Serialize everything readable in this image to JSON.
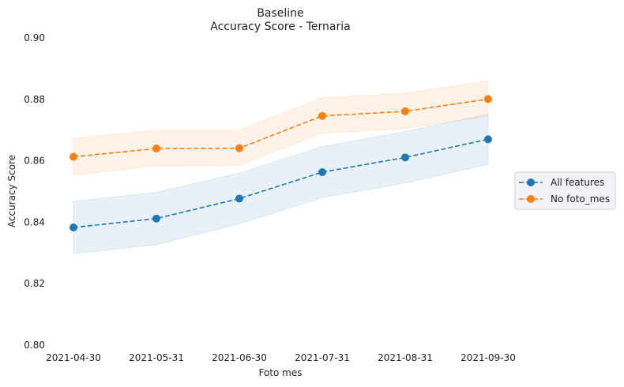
{
  "chart_data": {
    "type": "line",
    "title": "Baseline",
    "subtitle": "Accuracy Score - Ternaria",
    "xlabel": "Foto mes",
    "ylabel": "Accuracy Score",
    "categories": [
      "2021-04-30",
      "2021-05-31",
      "2021-06-30",
      "2021-07-31",
      "2021-08-31",
      "2021-09-30"
    ],
    "ylim": [
      0.8,
      0.9
    ],
    "yticks": [
      "0.80",
      "0.82",
      "0.84",
      "0.86",
      "0.88",
      "0.90"
    ],
    "grid": false,
    "legend_position": "right",
    "series": [
      {
        "name": "All features",
        "color": "#1f77b4",
        "values": [
          0.8383,
          0.8412,
          0.8477,
          0.8563,
          0.8611,
          0.867
        ],
        "lower": [
          0.8298,
          0.8327,
          0.8395,
          0.848,
          0.8528,
          0.8588
        ],
        "upper": [
          0.8468,
          0.8497,
          0.856,
          0.8646,
          0.8695,
          0.8752
        ]
      },
      {
        "name": "No foto_mes",
        "color": "#ff7f0e",
        "values": [
          0.8613,
          0.864,
          0.8641,
          0.8746,
          0.8761,
          0.8801
        ],
        "lower": [
          0.8553,
          0.8584,
          0.8585,
          0.869,
          0.8705,
          0.8745
        ],
        "upper": [
          0.8673,
          0.87,
          0.87,
          0.8805,
          0.882,
          0.886
        ]
      }
    ]
  }
}
